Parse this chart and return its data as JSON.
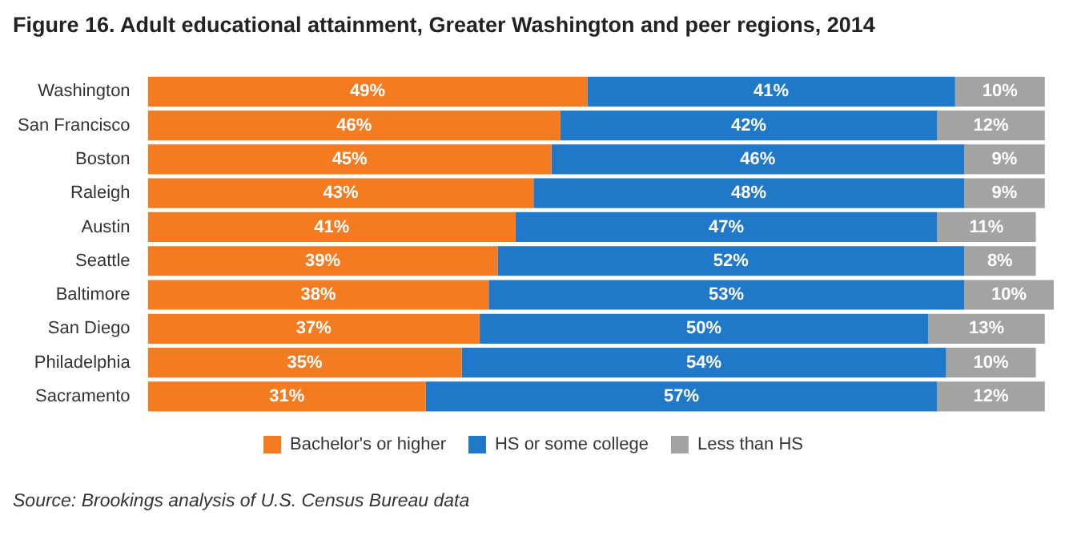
{
  "chart_data": {
    "type": "bar",
    "title": "Figure 16. Adult educational attainment, Greater Washington and peer regions, 2014",
    "orientation": "horizontal",
    "stacked": true,
    "legend": "bottom",
    "grid": false,
    "categories": [
      "Washington",
      "San Francisco",
      "Boston",
      "Raleigh",
      "Austin",
      "Seattle",
      "Baltimore",
      "San Diego",
      "Philadelphia",
      "Sacramento"
    ],
    "series": [
      {
        "name": "Bachelor's or higher",
        "color": "#f47b20",
        "values": [
          49,
          46,
          45,
          43,
          41,
          39,
          38,
          37,
          35,
          31
        ],
        "value_labels": [
          "49%",
          "46%",
          "45%",
          "43%",
          "41%",
          "39%",
          "38%",
          "37%",
          "35%",
          "31%"
        ]
      },
      {
        "name": "HS or some college",
        "color": "#1f78c8",
        "values": [
          41,
          42,
          46,
          48,
          47,
          52,
          53,
          50,
          54,
          57
        ],
        "value_labels": [
          "41%",
          "42%",
          "46%",
          "48%",
          "47%",
          "52%",
          "53%",
          "50%",
          "54%",
          "57%"
        ]
      },
      {
        "name": "Less than HS",
        "color": "#a3a3a3",
        "values": [
          10,
          12,
          9,
          9,
          11,
          8,
          10,
          13,
          10,
          12
        ],
        "value_labels": [
          "10%",
          "12%",
          "9%",
          "9%",
          "11%",
          "8%",
          "10%",
          "13%",
          "10%",
          "12%"
        ]
      }
    ],
    "annotations": [
      "Source: Brookings analysis of U.S. Census Bureau data"
    ]
  }
}
